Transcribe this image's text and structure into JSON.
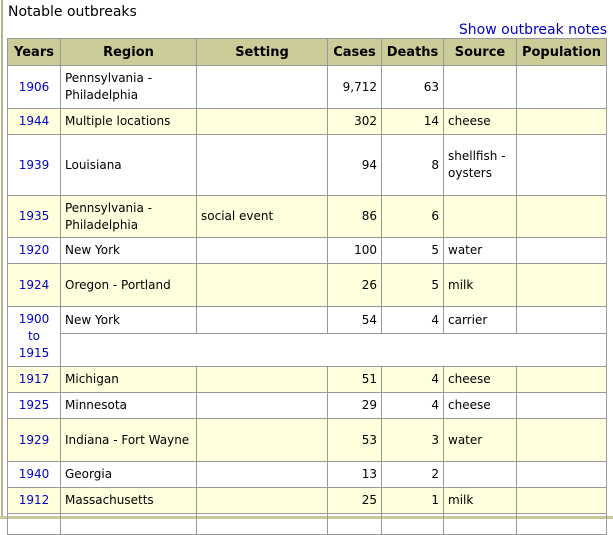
{
  "title": "Notable outbreaks",
  "notes_link": "Show outbreak notes",
  "colors": {
    "header_bg": "#cccc99",
    "alt_row_bg": "#ffffdd",
    "link": "#0000cc"
  },
  "columns": [
    "Years",
    "Region",
    "Setting",
    "Cases",
    "Deaths",
    "Source",
    "Population"
  ],
  "rows": [
    {
      "years": "1906",
      "region": "Pennsylvania - Philadelphia",
      "setting": "",
      "cases": "9,712",
      "deaths": "63",
      "source": "",
      "population": ""
    },
    {
      "years": "1944",
      "region": "Multiple locations",
      "setting": "",
      "cases": "302",
      "deaths": "14",
      "source": "cheese",
      "population": ""
    },
    {
      "years": "1939",
      "region": "Louisiana",
      "setting": "",
      "cases": "94",
      "deaths": "8",
      "source": "shellfish - oysters",
      "population": ""
    },
    {
      "years": "1935",
      "region": "Pennsylvania - Philadelphia",
      "setting": "social event",
      "cases": "86",
      "deaths": "6",
      "source": "",
      "population": ""
    },
    {
      "years": "1920",
      "region": "New York",
      "setting": "",
      "cases": "100",
      "deaths": "5",
      "source": "water",
      "population": ""
    },
    {
      "years": "1924",
      "region": "Oregon - Portland",
      "setting": "",
      "cases": "26",
      "deaths": "5",
      "source": "milk",
      "population": ""
    },
    {
      "years": "1900 to 1915",
      "region": "New York",
      "setting": "",
      "cases": "54",
      "deaths": "4",
      "source": "carrier",
      "population": ""
    },
    {
      "years": "1917",
      "region": "Michigan",
      "setting": "",
      "cases": "51",
      "deaths": "4",
      "source": "cheese",
      "population": ""
    },
    {
      "years": "1925",
      "region": "Minnesota",
      "setting": "",
      "cases": "29",
      "deaths": "4",
      "source": "cheese",
      "population": ""
    },
    {
      "years": "1929",
      "region": "Indiana - Fort Wayne",
      "setting": "",
      "cases": "53",
      "deaths": "3",
      "source": "water",
      "population": ""
    },
    {
      "years": "1940",
      "region": "Georgia",
      "setting": "",
      "cases": "13",
      "deaths": "2",
      "source": "",
      "population": ""
    },
    {
      "years": "1912",
      "region": "Massachusetts",
      "setting": "",
      "cases": "25",
      "deaths": "1",
      "source": "milk",
      "population": ""
    }
  ]
}
